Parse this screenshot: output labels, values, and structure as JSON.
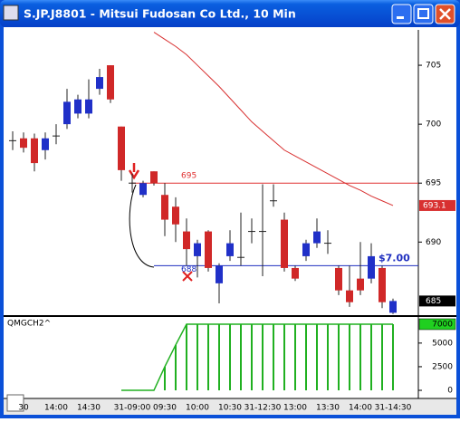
{
  "window": {
    "title": "S.JP.J8801 - Mitsui Fudosan Co Ltd., 10 Min"
  },
  "chart_data": [
    {
      "type": "candlestick",
      "categories": [
        null,
        "30",
        null,
        null,
        "14:00",
        null,
        null,
        "14:30",
        null,
        null,
        null,
        "31-09:00",
        null,
        null,
        "09:30",
        null,
        null,
        "10:00",
        null,
        null,
        "10:30",
        null,
        null,
        "31-12:30",
        null,
        null,
        "13:00",
        null,
        null,
        "13:30",
        null,
        null,
        "14:00",
        null,
        null,
        "31-14:30"
      ],
      "open": [
        698.6,
        698.8,
        698.8,
        697.8,
        699.0,
        700.0,
        700.9,
        700.9,
        703.0,
        705.0,
        699.8,
        695.0,
        694.0,
        696.0,
        694.0,
        693.0,
        690.9,
        688.8,
        690.9,
        686.5,
        688.8,
        688.7,
        690.9,
        690.9,
        693.5,
        691.9,
        687.8,
        688.8,
        689.9,
        689.9,
        687.8,
        685.9,
        686.9,
        686.9,
        687.8,
        684.0
      ],
      "high": [
        699.4,
        699.3,
        699.2,
        699.3,
        700.0,
        703.0,
        702.5,
        703.8,
        704.7,
        705.0,
        699.8,
        695.8,
        695.2,
        696.0,
        695.0,
        693.8,
        692.0,
        690.2,
        691.0,
        688.2,
        691.0,
        692.5,
        692.0,
        694.9,
        694.9,
        692.5,
        688.0,
        690.2,
        692.0,
        691.0,
        688.0,
        688.0,
        690.0,
        689.9,
        688.0,
        685.2
      ],
      "low": [
        697.8,
        697.6,
        696.0,
        697.0,
        698.3,
        699.6,
        700.5,
        700.5,
        702.5,
        701.8,
        695.2,
        694.2,
        693.8,
        694.8,
        690.5,
        690.0,
        688.0,
        687.0,
        687.5,
        684.8,
        688.4,
        688.0,
        689.9,
        687.1,
        693.0,
        687.5,
        686.7,
        688.4,
        689.5,
        689.0,
        685.5,
        684.5,
        685.5,
        686.5,
        684.4,
        683.9
      ],
      "close": [
        698.6,
        698.0,
        696.7,
        698.8,
        699.0,
        701.9,
        702.1,
        702.1,
        704.0,
        702.1,
        696.1,
        695.0,
        695.0,
        695.0,
        691.9,
        691.5,
        689.4,
        689.9,
        687.8,
        688.0,
        689.9,
        688.7,
        690.9,
        690.9,
        693.5,
        687.8,
        686.9,
        689.9,
        690.9,
        689.9,
        685.9,
        684.9,
        685.9,
        688.8,
        684.9,
        685.0
      ],
      "ma": [
        null,
        null,
        null,
        null,
        null,
        null,
        null,
        null,
        null,
        null,
        null,
        null,
        null,
        707.8,
        707.2,
        706.6,
        705.9,
        705.0,
        704.1,
        703.2,
        702.2,
        701.2,
        700.2,
        699.4,
        698.6,
        697.8,
        697.3,
        696.8,
        696.3,
        695.8,
        695.3,
        694.8,
        694.4,
        693.9,
        693.5,
        693.1
      ],
      "ma_color": "#d83030",
      "up_color": "#2030c8",
      "down_color": "#d02828",
      "doji_color": "#202020",
      "levels": [
        {
          "value": 695,
          "color": "#e03030"
        },
        {
          "value": 688,
          "color": "#2030c0"
        }
      ],
      "annotations": [
        "$7.00"
      ],
      "ylim": [
        683.8,
        708
      ],
      "yticks": [
        690,
        695,
        700,
        705
      ]
    },
    {
      "type": "stem",
      "name": "QMGCH2^",
      "color": "#20b020",
      "values": [
        null,
        null,
        null,
        null,
        null,
        null,
        null,
        null,
        null,
        null,
        0,
        0,
        0,
        0,
        2500,
        4800,
        7000,
        7000,
        7000,
        7000,
        7000,
        7000,
        7000,
        7000,
        7000,
        7000,
        7000,
        7000,
        7000,
        7000,
        7000,
        7000,
        7000,
        7000,
        7000,
        7000
      ],
      "ylim": [
        -860,
        7670
      ],
      "yticks": [
        0,
        2500,
        5000
      ]
    }
  ]
}
